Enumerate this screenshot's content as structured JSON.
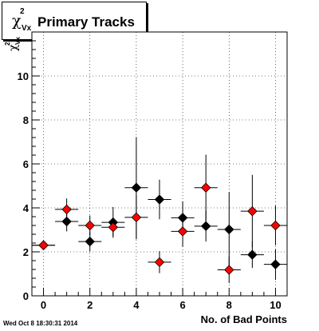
{
  "title": {
    "greek": "χ",
    "superscript": "2",
    "subscript": "Vx",
    "text": "Primary Tracks"
  },
  "timestamp": "Wed Oct  8 18:30:31 2014",
  "chart_data": {
    "type": "scatter",
    "title": "χ²Vx Primary Tracks",
    "xlabel": "No. of Bad Points",
    "ylabel": "χ²Vx",
    "xlim": [
      -0.5,
      10.5
    ],
    "ylim": [
      0,
      12
    ],
    "x_ticks": [
      0,
      2,
      4,
      6,
      8,
      10
    ],
    "y_ticks": [
      0,
      2,
      4,
      6,
      8,
      10
    ],
    "grid": true,
    "series": [
      {
        "marker": "circle",
        "color": "#000000",
        "points": [
          {
            "x": 0,
            "y": 2.3,
            "yerr": 0.2
          },
          {
            "x": 1,
            "y": 3.38,
            "yerr": 0.45
          },
          {
            "x": 2,
            "y": 2.47,
            "yerr": 0.45
          },
          {
            "x": 3,
            "y": 3.34,
            "yerr": 0.7
          },
          {
            "x": 4,
            "y": 4.92,
            "yerr": 2.3
          },
          {
            "x": 5,
            "y": 4.38,
            "yerr": 0.9
          },
          {
            "x": 6,
            "y": 3.55,
            "yerr": 0.75
          },
          {
            "x": 7,
            "y": 3.17,
            "yerr": 0.7
          },
          {
            "x": 8,
            "y": 3.02,
            "yerr": 1.7
          },
          {
            "x": 9,
            "y": 1.87,
            "yerr": 0.6
          },
          {
            "x": 10,
            "y": 1.43,
            "yerr": 0.7
          }
        ]
      },
      {
        "marker": "circle",
        "color": "#ff0000",
        "points": [
          {
            "x": 0,
            "y": 2.3,
            "yerr": 0.15
          },
          {
            "x": 1,
            "y": 3.93,
            "yerr": 0.5
          },
          {
            "x": 2,
            "y": 3.2,
            "yerr": 0.45
          },
          {
            "x": 3,
            "y": 3.12,
            "yerr": 0.4
          },
          {
            "x": 4,
            "y": 3.57,
            "yerr": 1.0
          },
          {
            "x": 5,
            "y": 1.53,
            "yerr": 0.5
          },
          {
            "x": 6,
            "y": 2.93,
            "yerr": 0.7
          },
          {
            "x": 7,
            "y": 4.92,
            "yerr": 1.5
          },
          {
            "x": 8,
            "y": 1.18,
            "yerr": 0.6
          },
          {
            "x": 9,
            "y": 3.85,
            "yerr": 1.65
          },
          {
            "x": 10,
            "y": 3.2,
            "yerr": 0.9
          }
        ]
      }
    ]
  }
}
